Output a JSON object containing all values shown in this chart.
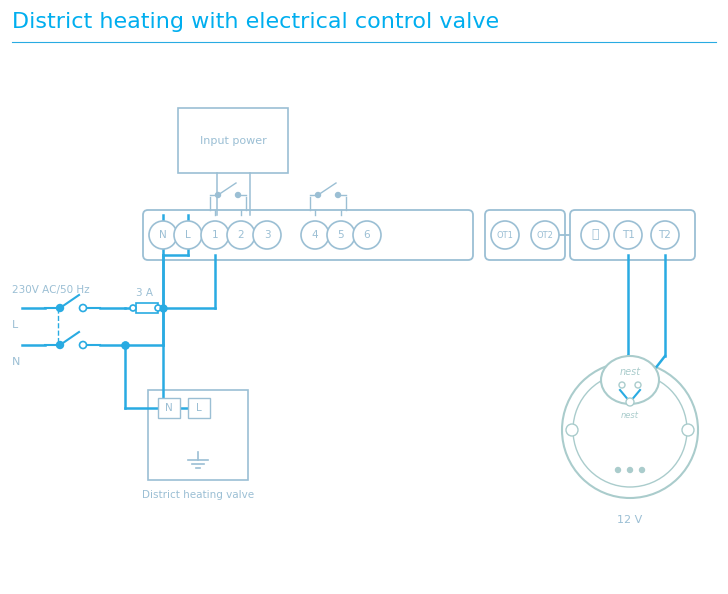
{
  "title": "District heating with electrical control valve",
  "title_color": "#00AEEF",
  "title_fontsize": 16,
  "line_color": "#29ABE2",
  "box_color": "#9BBFD4",
  "bg_color": "#FFFFFF",
  "label_230v": "230V AC/50 Hz",
  "label_L": "L",
  "label_N": "N",
  "label_3A": "3 A",
  "label_dh": "District heating valve",
  "label_12v": "12 V",
  "label_input": "Input power",
  "label_nest": "nest",
  "label_nest2": "nest"
}
